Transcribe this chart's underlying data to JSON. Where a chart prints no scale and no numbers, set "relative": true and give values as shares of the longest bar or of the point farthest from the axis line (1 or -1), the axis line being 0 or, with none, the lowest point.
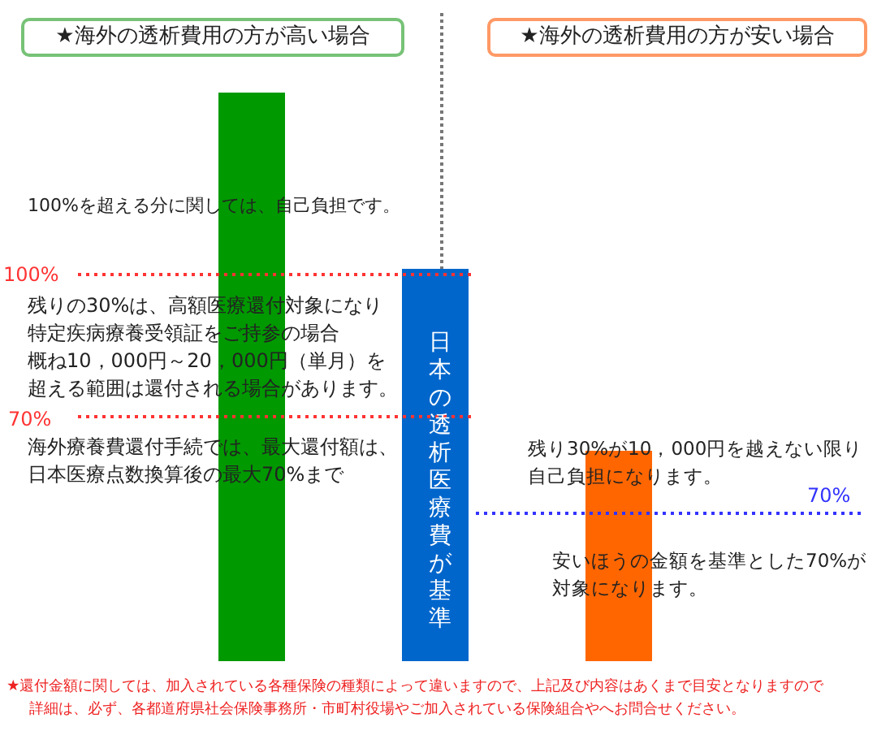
{
  "chart_data": {
    "type": "bar",
    "relative": true,
    "categories": [
      null,
      null,
      null
    ],
    "values": [
      1,
      0.69,
      0.37
    ],
    "colors": [
      "#009900",
      "#0066cc",
      "#ff6600"
    ],
    "ref_lines": [
      {
        "axis": "y",
        "value": 0.68,
        "color": "#ff3333",
        "line_style": "dotted"
      },
      {
        "axis": "y",
        "value": 0.43,
        "color": "#ff3333",
        "line_style": "dotted"
      },
      {
        "axis": "y",
        "value": 0.26,
        "color": "#3333ff",
        "line_style": "dotted"
      }
    ],
    "annotations": [
      "★海外の透析費用の方が高い場合",
      "★海外の透析費用の方が安い場合",
      "100%を超える分に関しては、自己負担です。",
      "残りの30%は、高額医療還付対象になり",
      "特定疾病療養受領証をご持参の場合",
      "概ね10，000円～20，000円（単月）を",
      "超える範囲は還付される場合があります。",
      "海外療養費還付手続では、最大還付額は、",
      "日本医療点数換算後の最大70%まで",
      "日本の透析医療費が基準",
      "残り30%が10，000円を越えない限り",
      "自己負担になります。",
      "安いほうの金額を基準とした70%が",
      "対象になります。",
      "★還付金額に関しては、加入されている各種保険の種類によって違いますので、上記及び内容はあくまで目安となりますので",
      "詳細は、必ず、各都道府県社会保険事務所・市町村役場やご加入されている保険組合やへお問合せください。",
      "100%",
      "70%",
      "70%"
    ]
  }
}
